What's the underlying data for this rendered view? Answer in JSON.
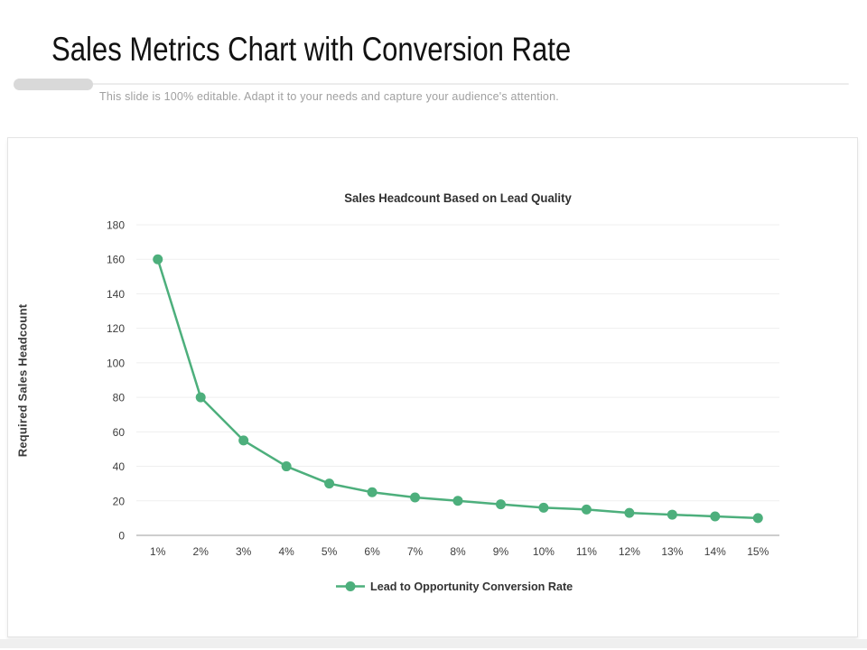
{
  "slide": {
    "title": "Sales Metrics Chart with Conversion Rate",
    "subtitle": "This slide is 100% editable. Adapt it to your needs and capture your audience's attention."
  },
  "chart_data": {
    "type": "line",
    "title": "Sales Headcount Based on Lead Quality",
    "xlabel": "",
    "ylabel": "Required Sales Headcount",
    "categories": [
      "1%",
      "2%",
      "3%",
      "4%",
      "5%",
      "6%",
      "7%",
      "8%",
      "9%",
      "10%",
      "11%",
      "12%",
      "13%",
      "14%",
      "15%"
    ],
    "series": [
      {
        "name": "Lead to Opportunity Conversion Rate",
        "values": [
          160,
          80,
          55,
          40,
          30,
          25,
          22,
          20,
          18,
          16,
          15,
          13,
          12,
          11,
          10
        ]
      }
    ],
    "ylim": [
      0,
      180
    ],
    "ytick_step": 20,
    "grid": true,
    "legend_position": "bottom",
    "colors": {
      "series": "#4daf7c",
      "grid": "#efefef",
      "axis": "#bdbdbd",
      "tick_text": "#3d3d3d"
    }
  }
}
